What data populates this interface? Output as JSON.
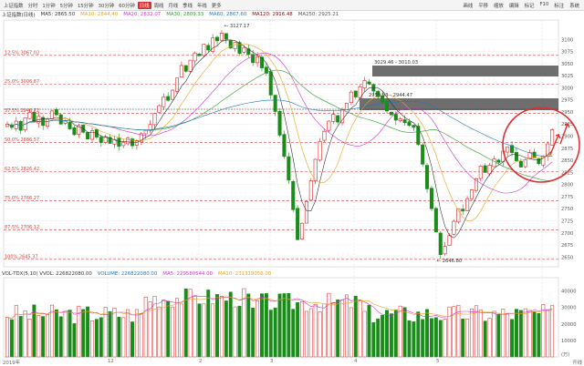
{
  "toolbar": {
    "tabs": [
      "上证指数",
      "分时",
      "1分钟",
      "5分钟",
      "15分钟",
      "30分钟",
      "60分钟",
      "日线",
      "周线",
      "月线",
      "季线",
      "年线",
      "更多"
    ],
    "active_tab": "日线",
    "right": [
      "画线",
      "平移",
      "缩放",
      "编辑",
      "标记",
      "F10",
      "标注",
      "系统"
    ]
  },
  "ma_legend": [
    {
      "label": "上证指数(日线)",
      "color": "#333333"
    },
    {
      "label": "MA5: 2865.50",
      "color": "#333333"
    },
    {
      "label": "MA10: 2844.40",
      "color": "#e8a317"
    },
    {
      "label": "MA20: 2832.07",
      "color": "#cc33cc"
    },
    {
      "label": "MA30: 2809.33",
      "color": "#2e9a2e"
    },
    {
      "label": "MA60: 2867.60",
      "color": "#1f77b4"
    },
    {
      "label": "MA120: 2916.48",
      "color": "#8b0000"
    },
    {
      "label": "MA250: 2925.21",
      "color": "#555555"
    }
  ],
  "vol_legend": [
    {
      "label": "VOL-TDX(5,10)  VVOL: 226822080.00",
      "color": "#333333"
    },
    {
      "label": "VOLUME: 226822080.00",
      "color": "#1f77b4"
    },
    {
      "label": "MA5: 229580544.00",
      "color": "#cc33cc"
    },
    {
      "label": "MA10: 231319056.00",
      "color": "#e8a317"
    }
  ],
  "fib_levels": [
    {
      "label": "12.5% 3067.02"
    },
    {
      "label": "25.0% 3006.87"
    },
    {
      "label": "37.5% 2946.72"
    },
    {
      "label": "50.0% 2886.57"
    },
    {
      "label": "62.5% 2826.42"
    },
    {
      "label": "75.0% 2766.27"
    },
    {
      "label": "87.5% 2706.12"
    },
    {
      "label": "100% 2645.37"
    }
  ],
  "annotations": {
    "high": "3127.17",
    "low": "2646.80",
    "range1": "3029.46 - 3010.03",
    "range2": "2959.93 - 2944.47"
  },
  "dates": [
    "2019年",
    "12",
    "2",
    "3",
    "4",
    "5"
  ],
  "corner_label": "开线",
  "chart_data": {
    "type": "candlestick",
    "price_axis": [
      3100,
      3075,
      3050,
      3025,
      3000,
      2975,
      2950,
      2925,
      2900,
      2875,
      2850,
      2825,
      2800,
      2775,
      2750,
      2725,
      2700,
      2675,
      2650
    ],
    "volume_axis": [
      "40000",
      "30000",
      "20000",
      "10000",
      "(万)"
    ],
    "ylim": [
      2630,
      3140
    ],
    "volume_ylim": [
      0,
      48000
    ],
    "colors": {
      "up": "#e02020",
      "down": "#1a8c1a",
      "fib": "#e04040"
    },
    "closes": [
      2925,
      2918,
      2931,
      2912,
      2938,
      2949,
      2930,
      2941,
      2922,
      2935,
      2952,
      2944,
      2925,
      2931,
      2915,
      2903,
      2922,
      2908,
      2894,
      2911,
      2898,
      2887,
      2899,
      2885,
      2893,
      2879,
      2887,
      2896,
      2880,
      2891,
      2905,
      2912,
      2924,
      2947,
      2963,
      2981,
      2974,
      2995,
      3020,
      3046,
      3034,
      3057,
      3072,
      3066,
      3090,
      3078,
      3103,
      3097,
      3113,
      3100,
      3082,
      3094,
      3071,
      3083,
      3069,
      3052,
      3064,
      3041,
      3030,
      2985,
      2951,
      2902,
      2858,
      2809,
      2748,
      2686,
      2720,
      2765,
      2808,
      2852,
      2889,
      2910,
      2931,
      2945,
      2929,
      2955,
      2968,
      2991,
      2981,
      3002,
      3015,
      3008,
      2993,
      2981,
      2970,
      2952,
      2944,
      2933,
      2936,
      2928,
      2922,
      2918,
      2883,
      2842,
      2791,
      2750,
      2702,
      2655,
      2672,
      2695,
      2724,
      2750,
      2745,
      2771,
      2789,
      2812,
      2838,
      2825,
      2840,
      2853,
      2846,
      2869,
      2878,
      2866,
      2849,
      2836,
      2851,
      2866,
      2855,
      2843,
      2858,
      2884,
      2913
    ]
  }
}
